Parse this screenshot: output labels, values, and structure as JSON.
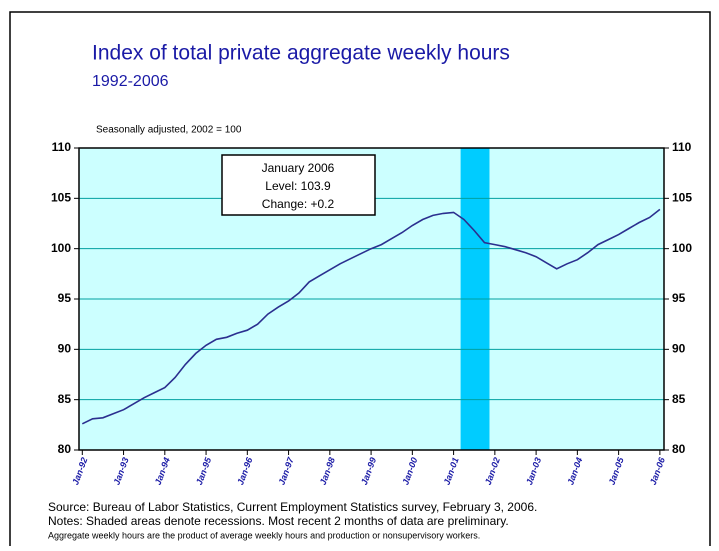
{
  "chart_data": {
    "type": "line",
    "title": "Index of total private aggregate weekly hours",
    "subtitle": "1992-2006",
    "note": "Seasonally adjusted,  2002 = 100",
    "annotation": [
      "January 2006",
      "Level: 103.9",
      "Change: +0.2"
    ],
    "footnotes": [
      "Source:  Bureau of Labor Statistics, Current Employment Statistics survey, February 3, 2006.",
      "Notes:  Shaded areas denote recessions.  Most recent 2 months of data are preliminary.",
      "Aggregate weekly hours are the product of average weekly hours and production or nonsupervisory workers."
    ],
    "x": [
      1992,
      1992.25,
      1992.5,
      1992.75,
      1993,
      1993.25,
      1993.5,
      1993.75,
      1994,
      1994.25,
      1994.5,
      1994.75,
      1995,
      1995.25,
      1995.5,
      1995.75,
      1996,
      1996.25,
      1996.5,
      1996.75,
      1997,
      1997.25,
      1997.5,
      1997.75,
      1998,
      1998.25,
      1998.5,
      1998.75,
      1999,
      1999.25,
      1999.5,
      1999.75,
      2000,
      2000.25,
      2000.5,
      2000.75,
      2001,
      2001.25,
      2001.5,
      2001.75,
      2002,
      2002.25,
      2002.5,
      2002.75,
      2003,
      2003.25,
      2003.5,
      2003.75,
      2004,
      2004.25,
      2004.5,
      2004.75,
      2005,
      2005.25,
      2005.5,
      2005.75,
      2006
    ],
    "values": [
      82.6,
      83.1,
      83.2,
      83.6,
      84.0,
      84.6,
      85.2,
      85.7,
      86.2,
      87.2,
      88.5,
      89.6,
      90.4,
      91.0,
      91.2,
      91.6,
      91.9,
      92.5,
      93.5,
      94.2,
      94.8,
      95.6,
      96.7,
      97.3,
      97.9,
      98.5,
      99.0,
      99.5,
      100.0,
      100.4,
      101.0,
      101.6,
      102.3,
      102.9,
      103.3,
      103.5,
      103.6,
      102.9,
      101.8,
      100.6,
      100.4,
      100.2,
      99.9,
      99.6,
      99.2,
      98.6,
      98.0,
      98.5,
      98.9,
      99.6,
      100.4,
      100.9,
      101.4,
      102.0,
      102.6,
      103.1,
      103.9
    ],
    "color": "#2b2f8f",
    "recessions": [
      {
        "start": 2001.17,
        "end": 2001.87
      }
    ],
    "recession_color": "#00ccff",
    "xlim": [
      1991.92,
      2006.1
    ],
    "xticks": [
      {
        "value": 1992,
        "label": "Jan-92"
      },
      {
        "value": 1993,
        "label": "Jan-93"
      },
      {
        "value": 1994,
        "label": "Jan-94"
      },
      {
        "value": 1995,
        "label": "Jan-95"
      },
      {
        "value": 1996,
        "label": "Jan-96"
      },
      {
        "value": 1997,
        "label": "Jan-97"
      },
      {
        "value": 1998,
        "label": "Jan-98"
      },
      {
        "value": 1999,
        "label": "Jan-99"
      },
      {
        "value": 2000,
        "label": "Jan-00"
      },
      {
        "value": 2001,
        "label": "Jan-01"
      },
      {
        "value": 2002,
        "label": "Jan-02"
      },
      {
        "value": 2003,
        "label": "Jan-03"
      },
      {
        "value": 2004,
        "label": "Jan-04"
      },
      {
        "value": 2005,
        "label": "Jan-05"
      },
      {
        "value": 2006,
        "label": "Jan-06"
      }
    ],
    "ylim": [
      80,
      110
    ],
    "yticks": [
      80,
      85,
      90,
      95,
      100,
      105,
      110
    ],
    "grid": true
  }
}
